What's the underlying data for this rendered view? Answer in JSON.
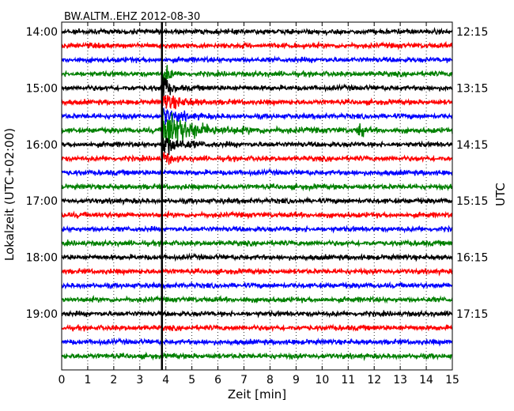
{
  "chart_data": {
    "type": "line",
    "title": "BW.ALTM..EHZ 2012-08-30",
    "xlabel": "Zeit  [min]",
    "ylabel_left": "Lokalzeit (UTC+02:00)",
    "ylabel_right": "UTC",
    "xlim": [
      0,
      15
    ],
    "x_ticks": [
      0,
      1,
      2,
      3,
      4,
      5,
      6,
      7,
      8,
      9,
      10,
      11,
      12,
      13,
      14,
      15
    ],
    "left_ticks": [
      "14:00",
      "15:00",
      "16:00",
      "17:00",
      "18:00",
      "19:00"
    ],
    "right_ticks": [
      "12:15",
      "13:15",
      "14:15",
      "15:15",
      "16:15",
      "17:15"
    ],
    "grid": "vertical-dotted",
    "trace_colors": [
      "#000000",
      "#ff0000",
      "#0000ff",
      "#008000"
    ],
    "traces_count": 24,
    "trace_interval_minutes": 15,
    "event": {
      "x_min": 3.85,
      "trace_index": 2,
      "peak_trace_index": 7
    }
  }
}
